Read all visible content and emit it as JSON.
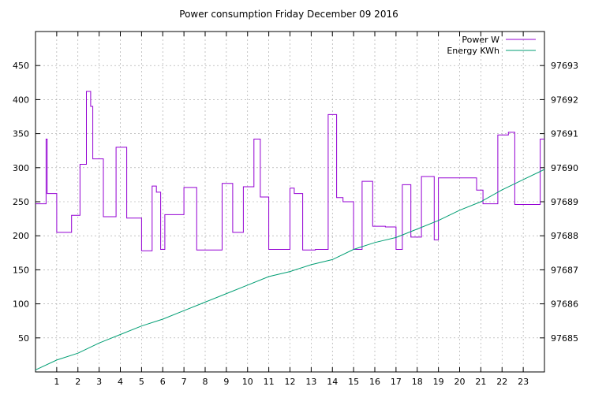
{
  "chart_data": {
    "type": "line",
    "title": "Power consumption Friday December 09 2016",
    "xlabel": "",
    "ylabel": "",
    "xlim": [
      0,
      24
    ],
    "ylim": [
      0,
      500
    ],
    "y2lim": [
      97684.0,
      97694.0
    ],
    "x_ticks": [
      1,
      2,
      3,
      4,
      5,
      6,
      7,
      8,
      9,
      10,
      11,
      12,
      13,
      14,
      15,
      16,
      17,
      18,
      19,
      20,
      21,
      22,
      23
    ],
    "y_ticks": [
      50,
      100,
      150,
      200,
      250,
      300,
      350,
      400,
      450
    ],
    "y2_ticks": [
      97685,
      97686,
      97687,
      97688,
      97689,
      97690,
      97691,
      97692,
      97693
    ],
    "grid": true,
    "legend_position": "top-right",
    "series": [
      {
        "name": "Power W",
        "axis": "left",
        "color": "#9400d3",
        "step": true,
        "x": [
          0.0,
          0.5,
          0.5,
          0.55,
          0.55,
          0.6,
          0.6,
          1.0,
          1.0,
          1.7,
          1.7,
          2.1,
          2.1,
          2.4,
          2.4,
          2.6,
          2.6,
          2.7,
          2.7,
          3.2,
          3.2,
          3.8,
          3.8,
          4.3,
          4.3,
          5.0,
          5.0,
          5.5,
          5.5,
          5.7,
          5.7,
          5.9,
          5.9,
          6.1,
          6.1,
          7.0,
          7.0,
          7.6,
          7.6,
          8.8,
          8.8,
          9.3,
          9.3,
          9.8,
          9.8,
          10.3,
          10.3,
          10.6,
          10.6,
          11.0,
          11.0,
          12.0,
          12.0,
          12.2,
          12.2,
          12.6,
          12.6,
          13.2,
          13.2,
          13.8,
          13.8,
          14.2,
          14.2,
          14.5,
          14.5,
          15.0,
          15.0,
          15.4,
          15.4,
          15.9,
          15.9,
          16.5,
          16.5,
          17.0,
          17.0,
          17.3,
          17.3,
          17.7,
          17.7,
          18.2,
          18.2,
          18.8,
          18.8,
          19.0,
          19.0,
          20.8,
          20.8,
          21.1,
          21.1,
          21.8,
          21.8,
          22.3,
          22.3,
          22.6,
          22.6,
          23.8,
          23.8,
          24.0
        ],
        "values": [
          247,
          247,
          342,
          342,
          262,
          262,
          262,
          262,
          205,
          205,
          230,
          230,
          305,
          305,
          412,
          412,
          390,
          390,
          313,
          313,
          228,
          228,
          330,
          330,
          226,
          226,
          178,
          178,
          273,
          273,
          264,
          264,
          180,
          180,
          231,
          231,
          271,
          271,
          179,
          179,
          277,
          277,
          205,
          205,
          272,
          272,
          342,
          342,
          257,
          257,
          180,
          180,
          270,
          270,
          262,
          262,
          179,
          179,
          180,
          180,
          378,
          378,
          256,
          256,
          250,
          250,
          180,
          180,
          280,
          280,
          214,
          214,
          213,
          213,
          180,
          180,
          275,
          275,
          198,
          198,
          287,
          287,
          194,
          194,
          285,
          285,
          267,
          267,
          247,
          247,
          348,
          348,
          352,
          352,
          246,
          246,
          342,
          342
        ]
      },
      {
        "name": "Energy KWh",
        "axis": "right",
        "color": "#009e73",
        "step": false,
        "x": [
          0,
          1,
          2,
          3,
          4,
          5,
          6,
          7,
          8,
          9,
          10,
          11,
          12,
          13,
          14,
          15,
          16,
          17,
          18,
          19,
          20,
          21,
          22,
          23,
          24
        ],
        "values": [
          97684.06,
          97684.35,
          97684.55,
          97684.85,
          97685.1,
          97685.35,
          97685.55,
          97685.8,
          97686.05,
          97686.3,
          97686.55,
          97686.8,
          97686.95,
          97687.15,
          97687.3,
          97687.6,
          97687.8,
          97687.95,
          97688.2,
          97688.45,
          97688.75,
          97689.0,
          97689.35,
          97689.65,
          97689.95
        ]
      }
    ]
  }
}
